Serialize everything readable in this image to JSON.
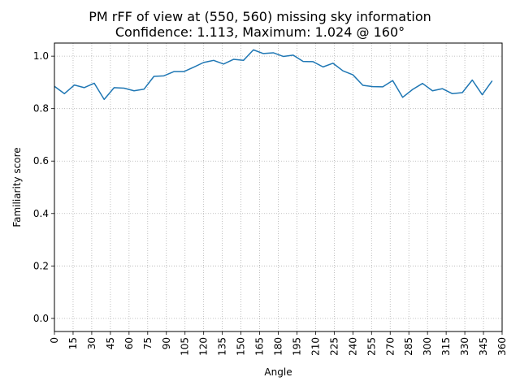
{
  "chart_data": {
    "type": "line",
    "title": "PM rFF of view at (550, 560) missing sky information",
    "subtitle": "Confidence: 1.113, Maximum: 1.024 @ 160°",
    "xlabel": "Angle",
    "ylabel": "Familiarity score",
    "xlim": [
      0,
      360
    ],
    "ylim": [
      -0.05,
      1.05
    ],
    "xticks": [
      0,
      15,
      30,
      45,
      60,
      75,
      90,
      105,
      120,
      135,
      150,
      165,
      180,
      195,
      210,
      225,
      240,
      255,
      270,
      285,
      300,
      315,
      330,
      345,
      360
    ],
    "yticks": [
      0.0,
      0.2,
      0.4,
      0.6,
      0.8,
      1.0
    ],
    "ytick_labels": [
      "0.0",
      "0.2",
      "0.4",
      "0.6",
      "0.8",
      "1.0"
    ],
    "grid": true,
    "line_color": "#1f77b4",
    "series": [
      {
        "x": [
          0,
          8,
          16,
          24,
          32,
          40,
          48,
          56,
          64,
          72,
          80,
          88,
          96,
          104,
          112,
          120,
          128,
          136,
          144,
          152,
          160,
          168,
          176,
          184,
          192,
          200,
          208,
          216,
          224,
          232,
          240,
          248,
          256,
          264,
          272,
          280,
          288,
          296,
          304,
          312,
          320,
          328,
          336,
          344,
          352
        ],
        "values": [
          0.885,
          0.857,
          0.89,
          0.88,
          0.897,
          0.835,
          0.88,
          0.878,
          0.868,
          0.874,
          0.923,
          0.925,
          0.941,
          0.941,
          0.958,
          0.976,
          0.984,
          0.97,
          0.988,
          0.984,
          1.024,
          1.01,
          1.013,
          0.999,
          1.004,
          0.98,
          0.979,
          0.959,
          0.973,
          0.944,
          0.929,
          0.889,
          0.884,
          0.883,
          0.907,
          0.843,
          0.873,
          0.896,
          0.868,
          0.876,
          0.857,
          0.861,
          0.909,
          0.853,
          0.906
        ]
      }
    ]
  }
}
